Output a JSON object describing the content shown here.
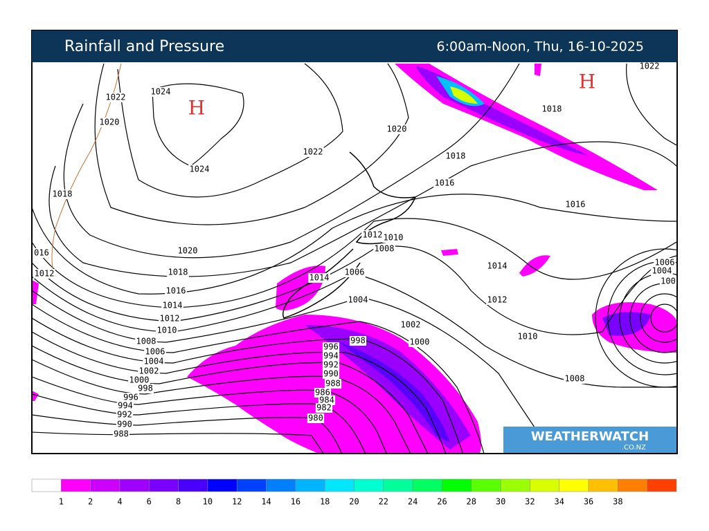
{
  "header": {
    "title": "Rainfall and Pressure",
    "period": "6:00am-Noon, Thu, 16-10-2025"
  },
  "map": {
    "highs": [
      "H",
      "H"
    ],
    "isobar_labels": [
      1024,
      1022,
      1020,
      1024,
      1022,
      1020,
      1018,
      "016",
      1012,
      1020,
      1018,
      1016,
      1014,
      1012,
      1010,
      1008,
      1006,
      1004,
      1002,
      1000,
      998,
      996,
      994,
      992,
      990,
      988,
      1018,
      1016,
      1016,
      1018,
      1022,
      1014,
      1012,
      1010,
      1008,
      1012,
      1010,
      1008,
      1014,
      1006,
      1004,
      1002,
      1000,
      998,
      996,
      994,
      992,
      990,
      988,
      986,
      984,
      982,
      980,
      1006,
      1004,
      "100"
    ],
    "logo": {
      "name": "WEATHERWATCH",
      "domain": ".CO.NZ"
    }
  },
  "legend": {
    "labels": [
      1,
      2,
      4,
      6,
      8,
      10,
      12,
      14,
      16,
      18,
      20,
      22,
      24,
      26,
      28,
      30,
      32,
      34,
      36,
      38
    ],
    "colors": [
      "#ffffff",
      "#ff00ff",
      "#cc00ff",
      "#a000ff",
      "#7a00ff",
      "#4a00ff",
      "#0000ff",
      "#0040ff",
      "#0080ff",
      "#00b4ff",
      "#00e6ff",
      "#00ffd0",
      "#00ff9a",
      "#00ff60",
      "#00ff00",
      "#5aff00",
      "#9aff00",
      "#d8ff00",
      "#ffff00",
      "#ffc000",
      "#ff8000",
      "#ff4000"
    ]
  }
}
